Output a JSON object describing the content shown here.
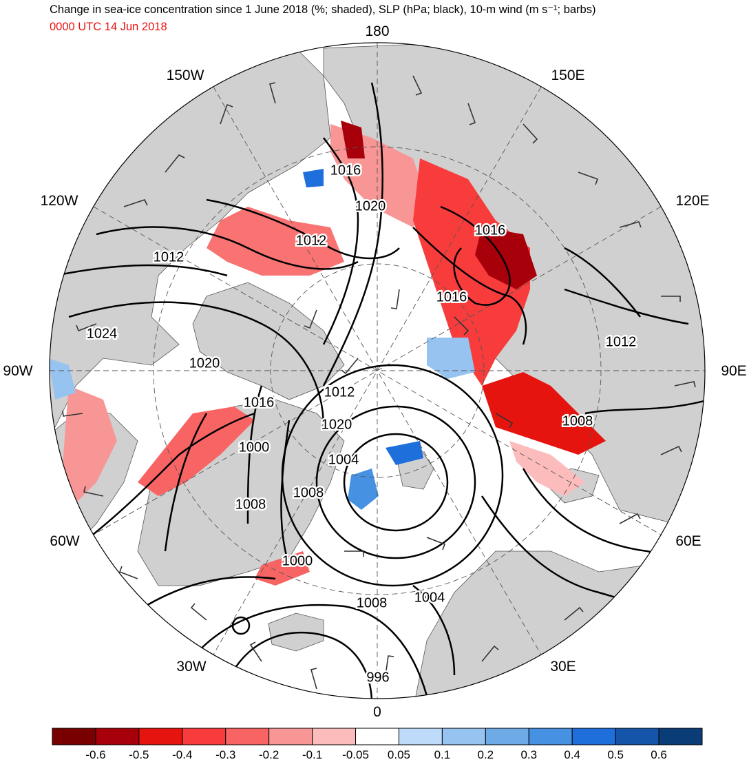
{
  "title": "Change in sea-ice concentration since 1 June 2018 (%; shaded), SLP (hPa; black), 10-m wind (m s⁻¹; barbs)",
  "subtitle": "0000 UTC 14 Jun 2018",
  "colors": {
    "land": "#d0d0d0",
    "ocean": "#ffffff",
    "subtitle": "#e8110f",
    "contour": "#000000"
  },
  "longitude_labels": [
    {
      "text": "180"
    },
    {
      "text": "150E"
    },
    {
      "text": "120E"
    },
    {
      "text": "90E"
    },
    {
      "text": "60E"
    },
    {
      "text": "30E"
    },
    {
      "text": "0"
    },
    {
      "text": "30W"
    },
    {
      "text": "60W"
    },
    {
      "text": "90W"
    },
    {
      "text": "120W"
    },
    {
      "text": "150W"
    }
  ],
  "slp_contour_labels": [
    "1016",
    "1020",
    "1012",
    "1016",
    "1016",
    "1012",
    "1012",
    "1020",
    "1024",
    "1020",
    "1016",
    "1012",
    "1008",
    "1004",
    "1000",
    "1008",
    "1008",
    "1004",
    "1000",
    "1008",
    "996"
  ],
  "colorbar": {
    "colors": [
      "#780000",
      "#a8000a",
      "#e6140f",
      "#f83c3c",
      "#f86464",
      "#f89696",
      "#fcbcbc",
      "#ffffff",
      "#bedcfa",
      "#96c3f0",
      "#6eaae6",
      "#4691e1",
      "#1e6edc",
      "#1455aa",
      "#0a3c78"
    ],
    "labels": [
      "-0.6",
      "-0.5",
      "-0.4",
      "-0.3",
      "-0.2",
      "-0.1",
      "-0.05",
      "0.05",
      "0.1",
      "0.2",
      "0.3",
      "0.4",
      "0.5",
      "0.6"
    ]
  }
}
